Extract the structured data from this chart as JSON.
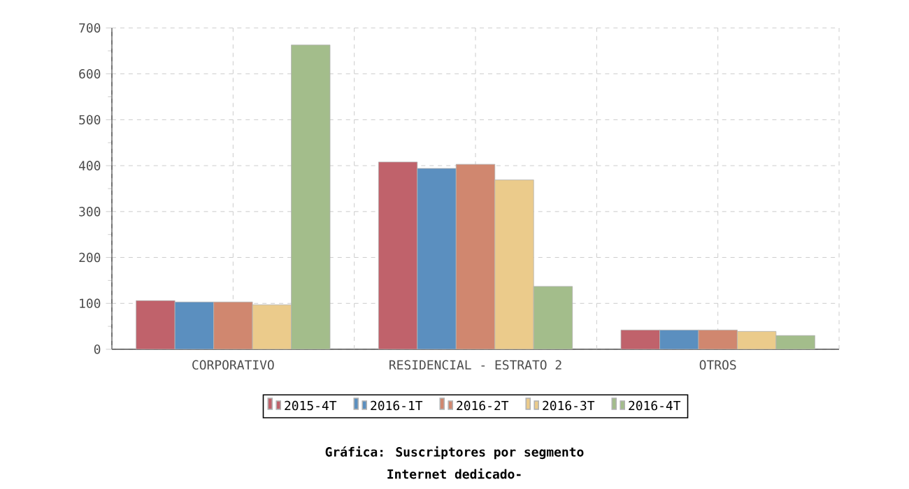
{
  "chart_data": {
    "type": "bar",
    "title": "Gráfica: Suscriptores por segmento",
    "subtitle": "Internet dedicado-",
    "categories": [
      "CORPORATIVO",
      "RESIDENCIAL - ESTRATO 2",
      "OTROS"
    ],
    "series": [
      {
        "name": "2015-4T",
        "color": "#c0626b",
        "values": [
          106,
          408,
          42
        ]
      },
      {
        "name": "2016-1T",
        "color": "#5b8fbf",
        "values": [
          103,
          394,
          42
        ]
      },
      {
        "name": "2016-2T",
        "color": "#d0876f",
        "values": [
          103,
          403,
          42
        ]
      },
      {
        "name": "2016-3T",
        "color": "#ebcb8b",
        "values": [
          97,
          369,
          39
        ]
      },
      {
        "name": "2016-4T",
        "color": "#a3bd8b",
        "values": [
          663,
          137,
          30
        ]
      }
    ],
    "ylim": [
      0,
      700
    ],
    "yticks": [
      0,
      100,
      200,
      300,
      400,
      500,
      600,
      700
    ],
    "grid": true,
    "legend": "bottom"
  }
}
